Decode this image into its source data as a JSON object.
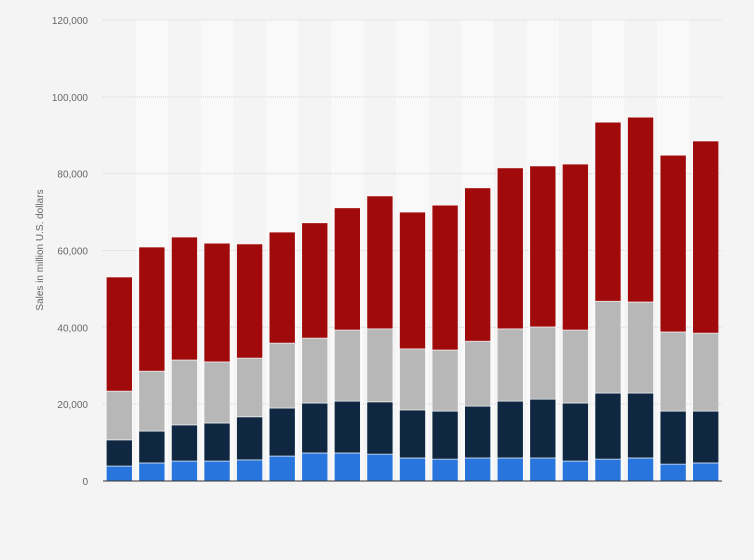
{
  "chart_data": {
    "type": "bar",
    "stacked": true,
    "title": "",
    "xlabel": "",
    "ylabel": "Sales in million U.S. dollars",
    "ylim": [
      0,
      120000
    ],
    "yticks": [
      0,
      20000,
      40000,
      60000,
      80000,
      100000,
      120000
    ],
    "ytick_labels": [
      "0",
      "20,000",
      "40,000",
      "60,000",
      "80,000",
      "100,000",
      "120,000"
    ],
    "grid": true,
    "legend": "none",
    "bar_count": 19,
    "series": [
      {
        "color": "#2876dd",
        "values": [
          3900,
          4700,
          5200,
          5200,
          5500,
          6500,
          7300,
          7300,
          7000,
          6000,
          5700,
          6000,
          6000,
          6000,
          5200,
          5700,
          6000,
          4400,
          4700
        ]
      },
      {
        "color": "#0f2741",
        "values": [
          6800,
          8300,
          9400,
          9900,
          11200,
          12500,
          13000,
          13500,
          13600,
          12500,
          12500,
          13500,
          14800,
          15300,
          15100,
          17200,
          16900,
          13800,
          13500
        ]
      },
      {
        "color": "#b7b7b7",
        "values": [
          12700,
          15600,
          16900,
          15900,
          15300,
          16900,
          16900,
          18500,
          19000,
          15900,
          15900,
          16900,
          18800,
          18800,
          19000,
          23900,
          23700,
          20600,
          20300
        ]
      },
      {
        "color": "#a10a0a",
        "values": [
          29700,
          32300,
          32000,
          30900,
          29700,
          28900,
          30000,
          31800,
          34600,
          35600,
          37700,
          39900,
          41900,
          41900,
          43200,
          46600,
          48100,
          46000,
          50000
        ]
      }
    ]
  }
}
